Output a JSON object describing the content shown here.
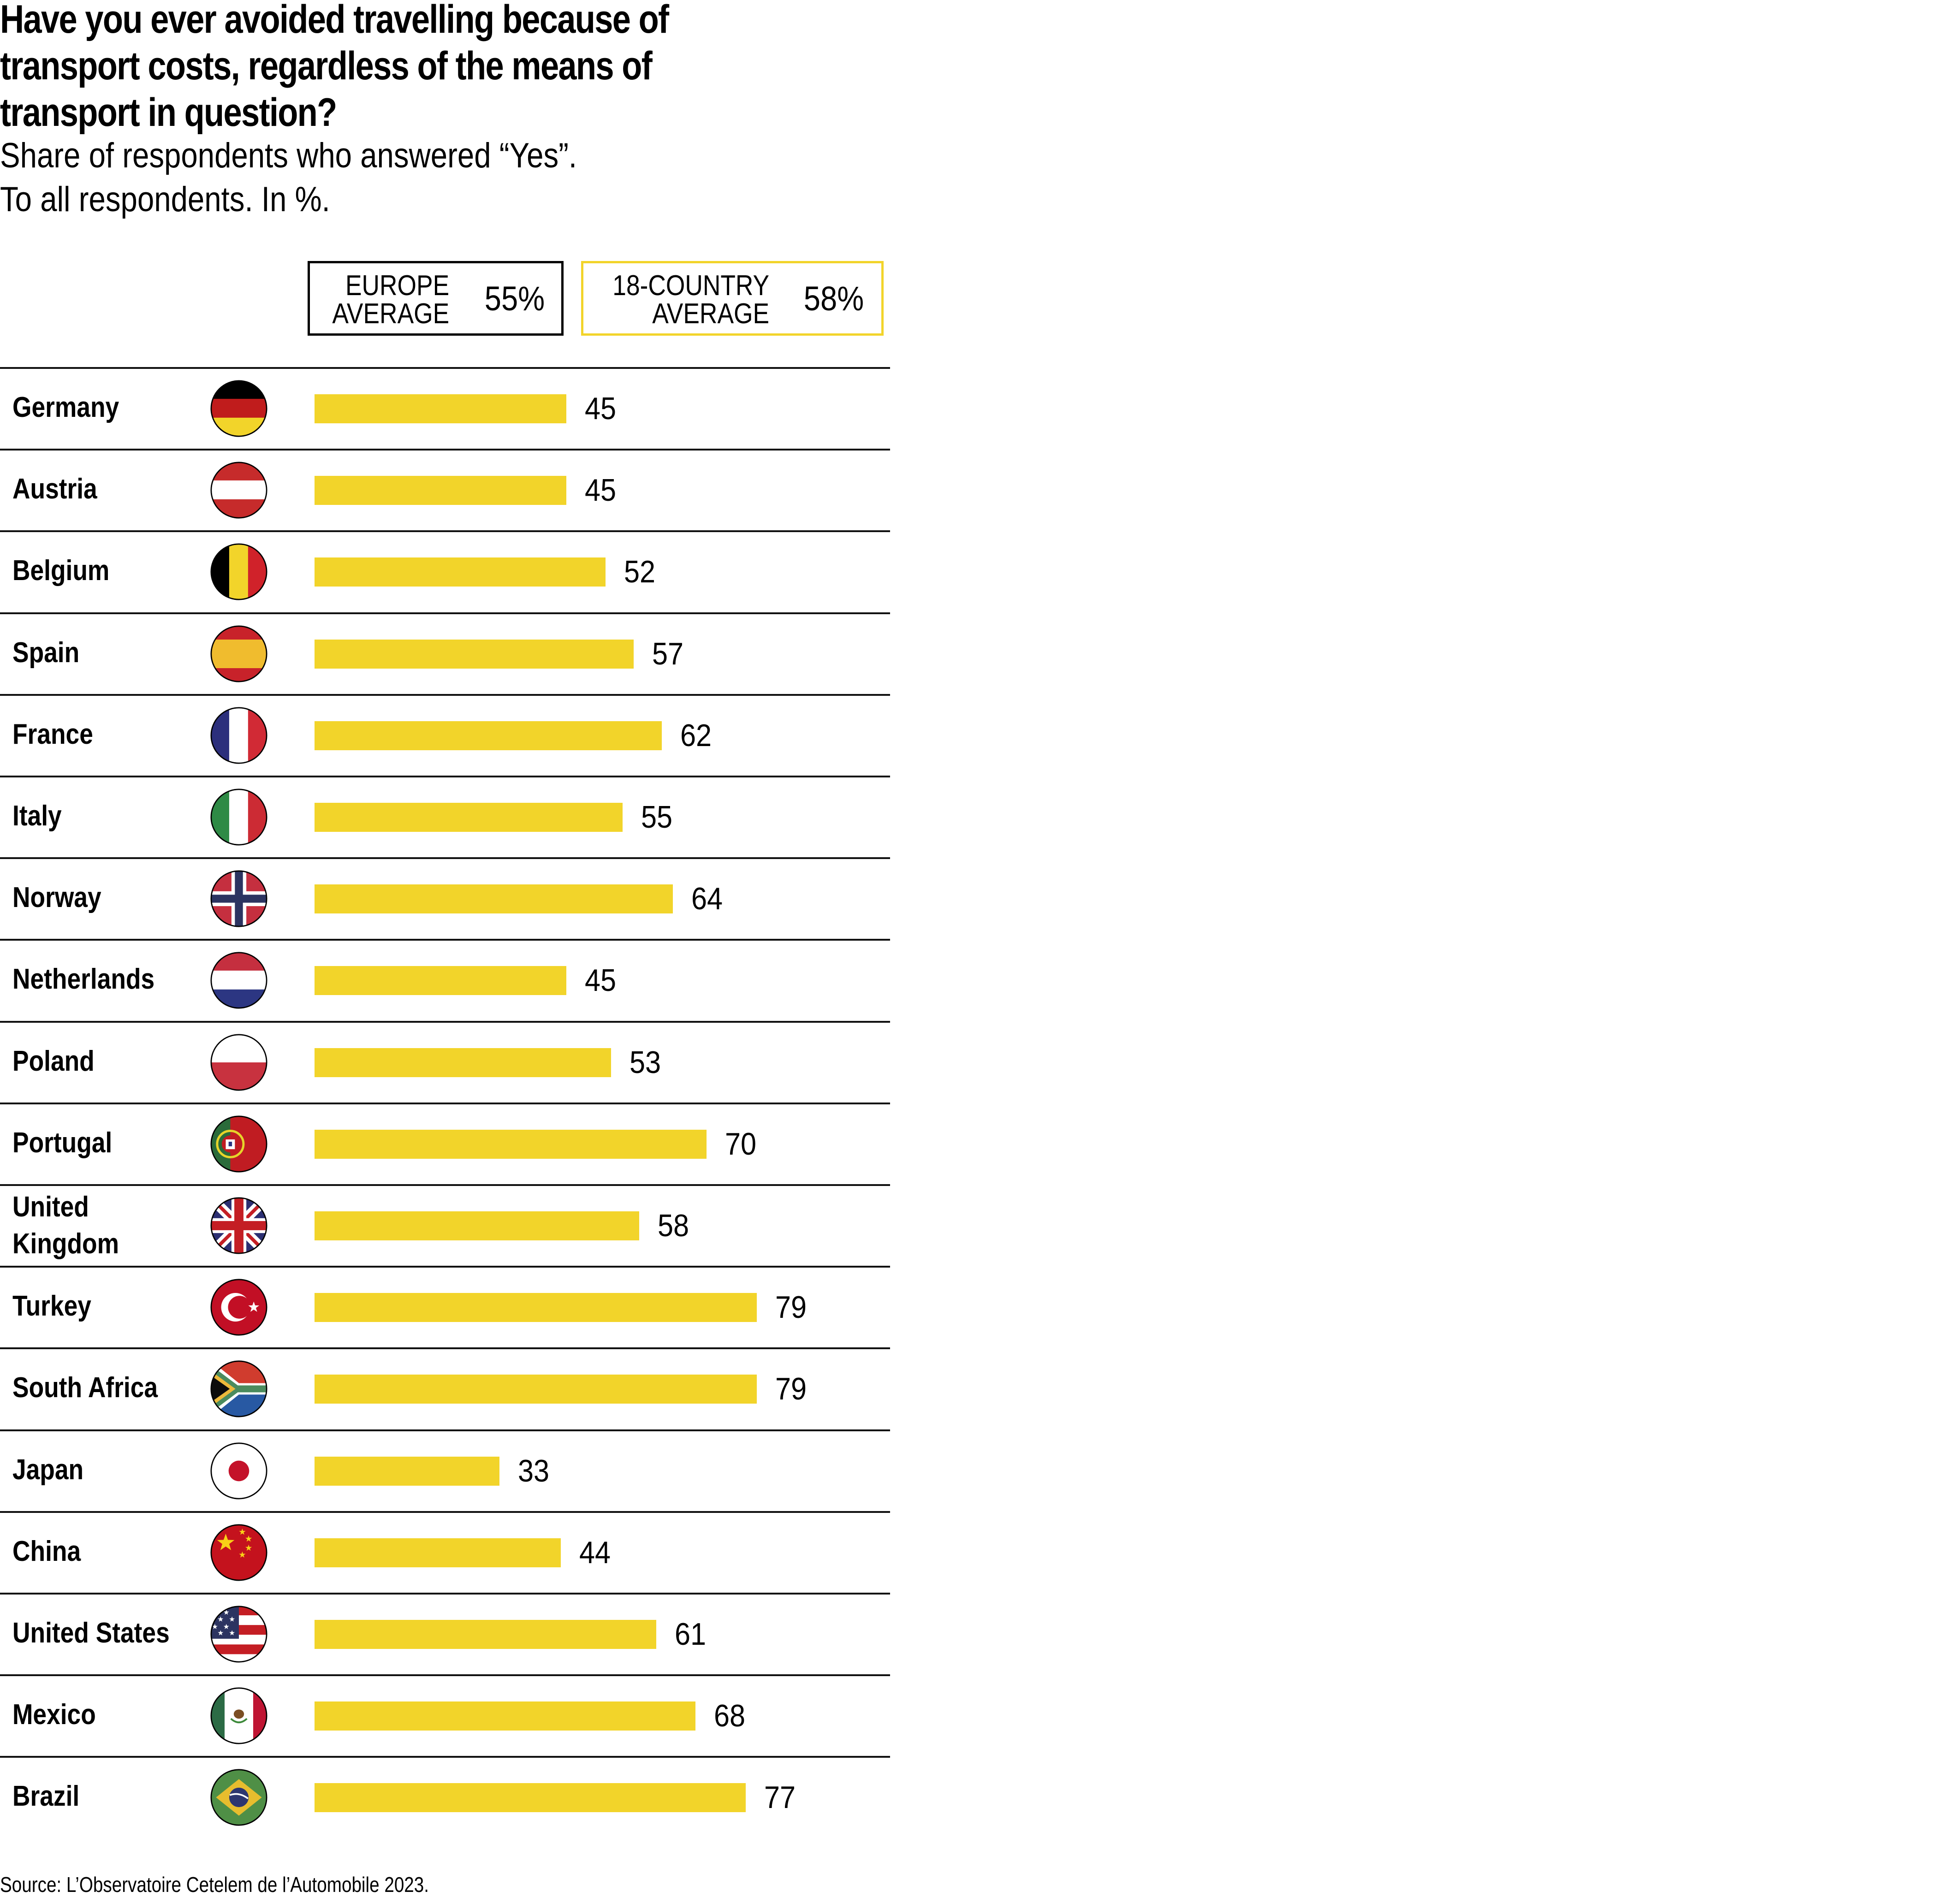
{
  "header": {
    "title_lines": [
      "Have you ever avoided travelling because of",
      "transport costs, regardless of the means of",
      "transport in question?"
    ],
    "subtitle_lines": [
      "Share of respondents who answered “Yes”.",
      "To all respondents. In %."
    ]
  },
  "legend": {
    "europe": {
      "label_lines": [
        "EUROPE",
        "AVERAGE"
      ],
      "value": "55%",
      "border_color": "#000000"
    },
    "all": {
      "label_lines": [
        "18-COUNTRY",
        "AVERAGE"
      ],
      "value": "58%",
      "border_color": "#f2d42a"
    }
  },
  "colors": {
    "bar": "#f2d42a",
    "line": "#111111"
  },
  "chart_data": {
    "type": "bar",
    "orientation": "horizontal",
    "title": "Have you ever avoided travelling because of transport costs, regardless of the means of transport in question?",
    "subtitle": "Share of respondents who answered “Yes”. To all respondents. In %.",
    "xlabel": "",
    "ylabel": "",
    "xlim": [
      0,
      100
    ],
    "grid": false,
    "legend": "top",
    "unit": "%",
    "categories": [
      "Germany",
      "Austria",
      "Belgium",
      "Spain",
      "France",
      "Italy",
      "Norway",
      "Netherlands",
      "Poland",
      "Portugal",
      "United Kingdom",
      "Turkey",
      "South Africa",
      "Japan",
      "China",
      "United States",
      "Mexico",
      "Brazil"
    ],
    "category_label_lines": [
      [
        "Germany"
      ],
      [
        "Austria"
      ],
      [
        "Belgium"
      ],
      [
        "Spain"
      ],
      [
        "France"
      ],
      [
        "Italy"
      ],
      [
        "Norway"
      ],
      [
        "Netherlands"
      ],
      [
        "Poland"
      ],
      [
        "Portugal"
      ],
      [
        "United",
        "Kingdom"
      ],
      [
        "Turkey"
      ],
      [
        "South Africa"
      ],
      [
        "Japan"
      ],
      [
        "China"
      ],
      [
        "United States"
      ],
      [
        "Mexico"
      ],
      [
        "Brazil"
      ]
    ],
    "flags": [
      "germany-flag-icon",
      "austria-flag-icon",
      "belgium-flag-icon",
      "spain-flag-icon",
      "france-flag-icon",
      "italy-flag-icon",
      "norway-flag-icon",
      "netherlands-flag-icon",
      "poland-flag-icon",
      "portugal-flag-icon",
      "uk-flag-icon",
      "turkey-flag-icon",
      "south-africa-flag-icon",
      "japan-flag-icon",
      "china-flag-icon",
      "usa-flag-icon",
      "mexico-flag-icon",
      "brazil-flag-icon"
    ],
    "values": [
      45,
      45,
      52,
      57,
      62,
      55,
      64,
      45,
      53,
      70,
      58,
      79,
      79,
      33,
      44,
      61,
      68,
      77
    ],
    "reference_lines": [
      {
        "name": "EUROPE AVERAGE",
        "value": 55
      },
      {
        "name": "18-COUNTRY AVERAGE",
        "value": 58
      }
    ]
  },
  "footer": {
    "source": "Source: L’Observatoire Cetelem de l’Automobile 2023."
  }
}
